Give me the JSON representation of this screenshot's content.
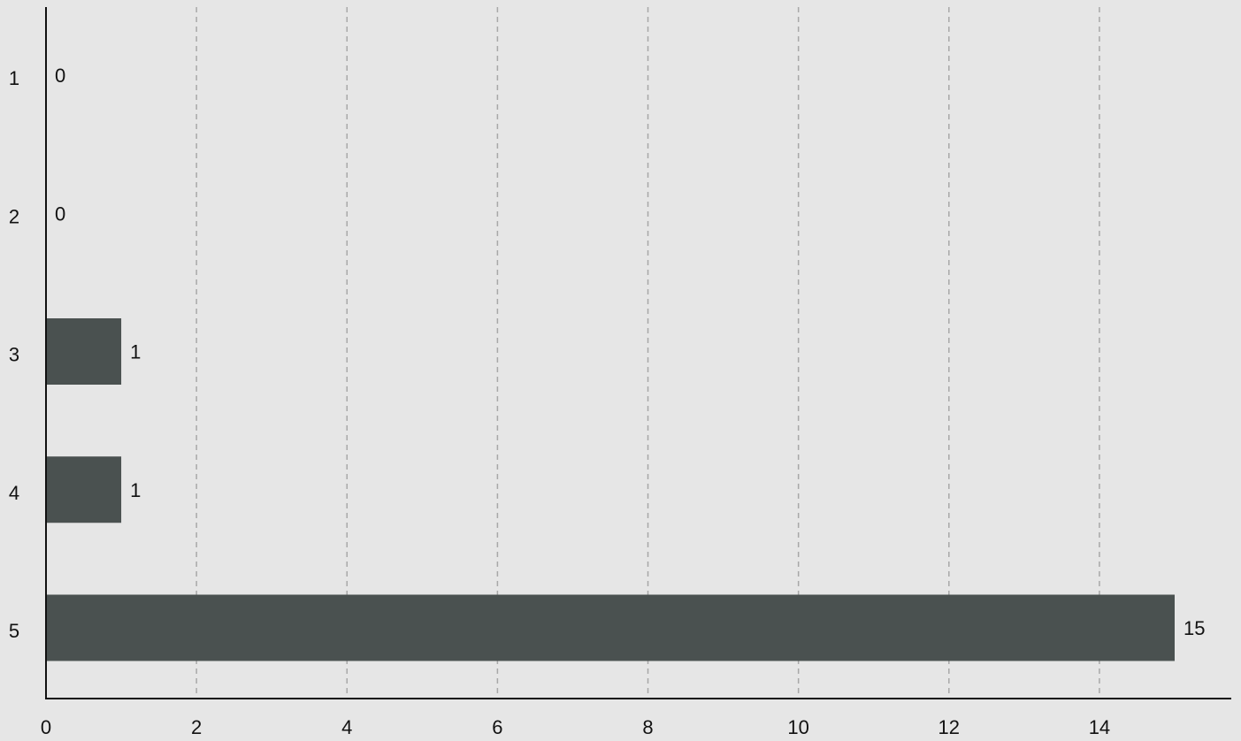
{
  "chart_data": {
    "type": "bar",
    "orientation": "horizontal",
    "categories": [
      "1",
      "2",
      "3",
      "4",
      "5"
    ],
    "values": [
      0,
      0,
      1,
      1,
      15
    ],
    "data_labels": [
      "0",
      "0",
      "1",
      "1",
      "15"
    ],
    "x_ticks": [
      "0",
      "2",
      "4",
      "6",
      "8",
      "10",
      "12",
      "14"
    ],
    "xlim": [
      0,
      15.75
    ],
    "title": "",
    "xlabel": "",
    "ylabel": "",
    "grid": "vertical-dashed",
    "colors": {
      "bar": "#4a5150",
      "background": "#e6e6e6",
      "grid": "#a8a8a8",
      "axis": "#111111"
    }
  }
}
